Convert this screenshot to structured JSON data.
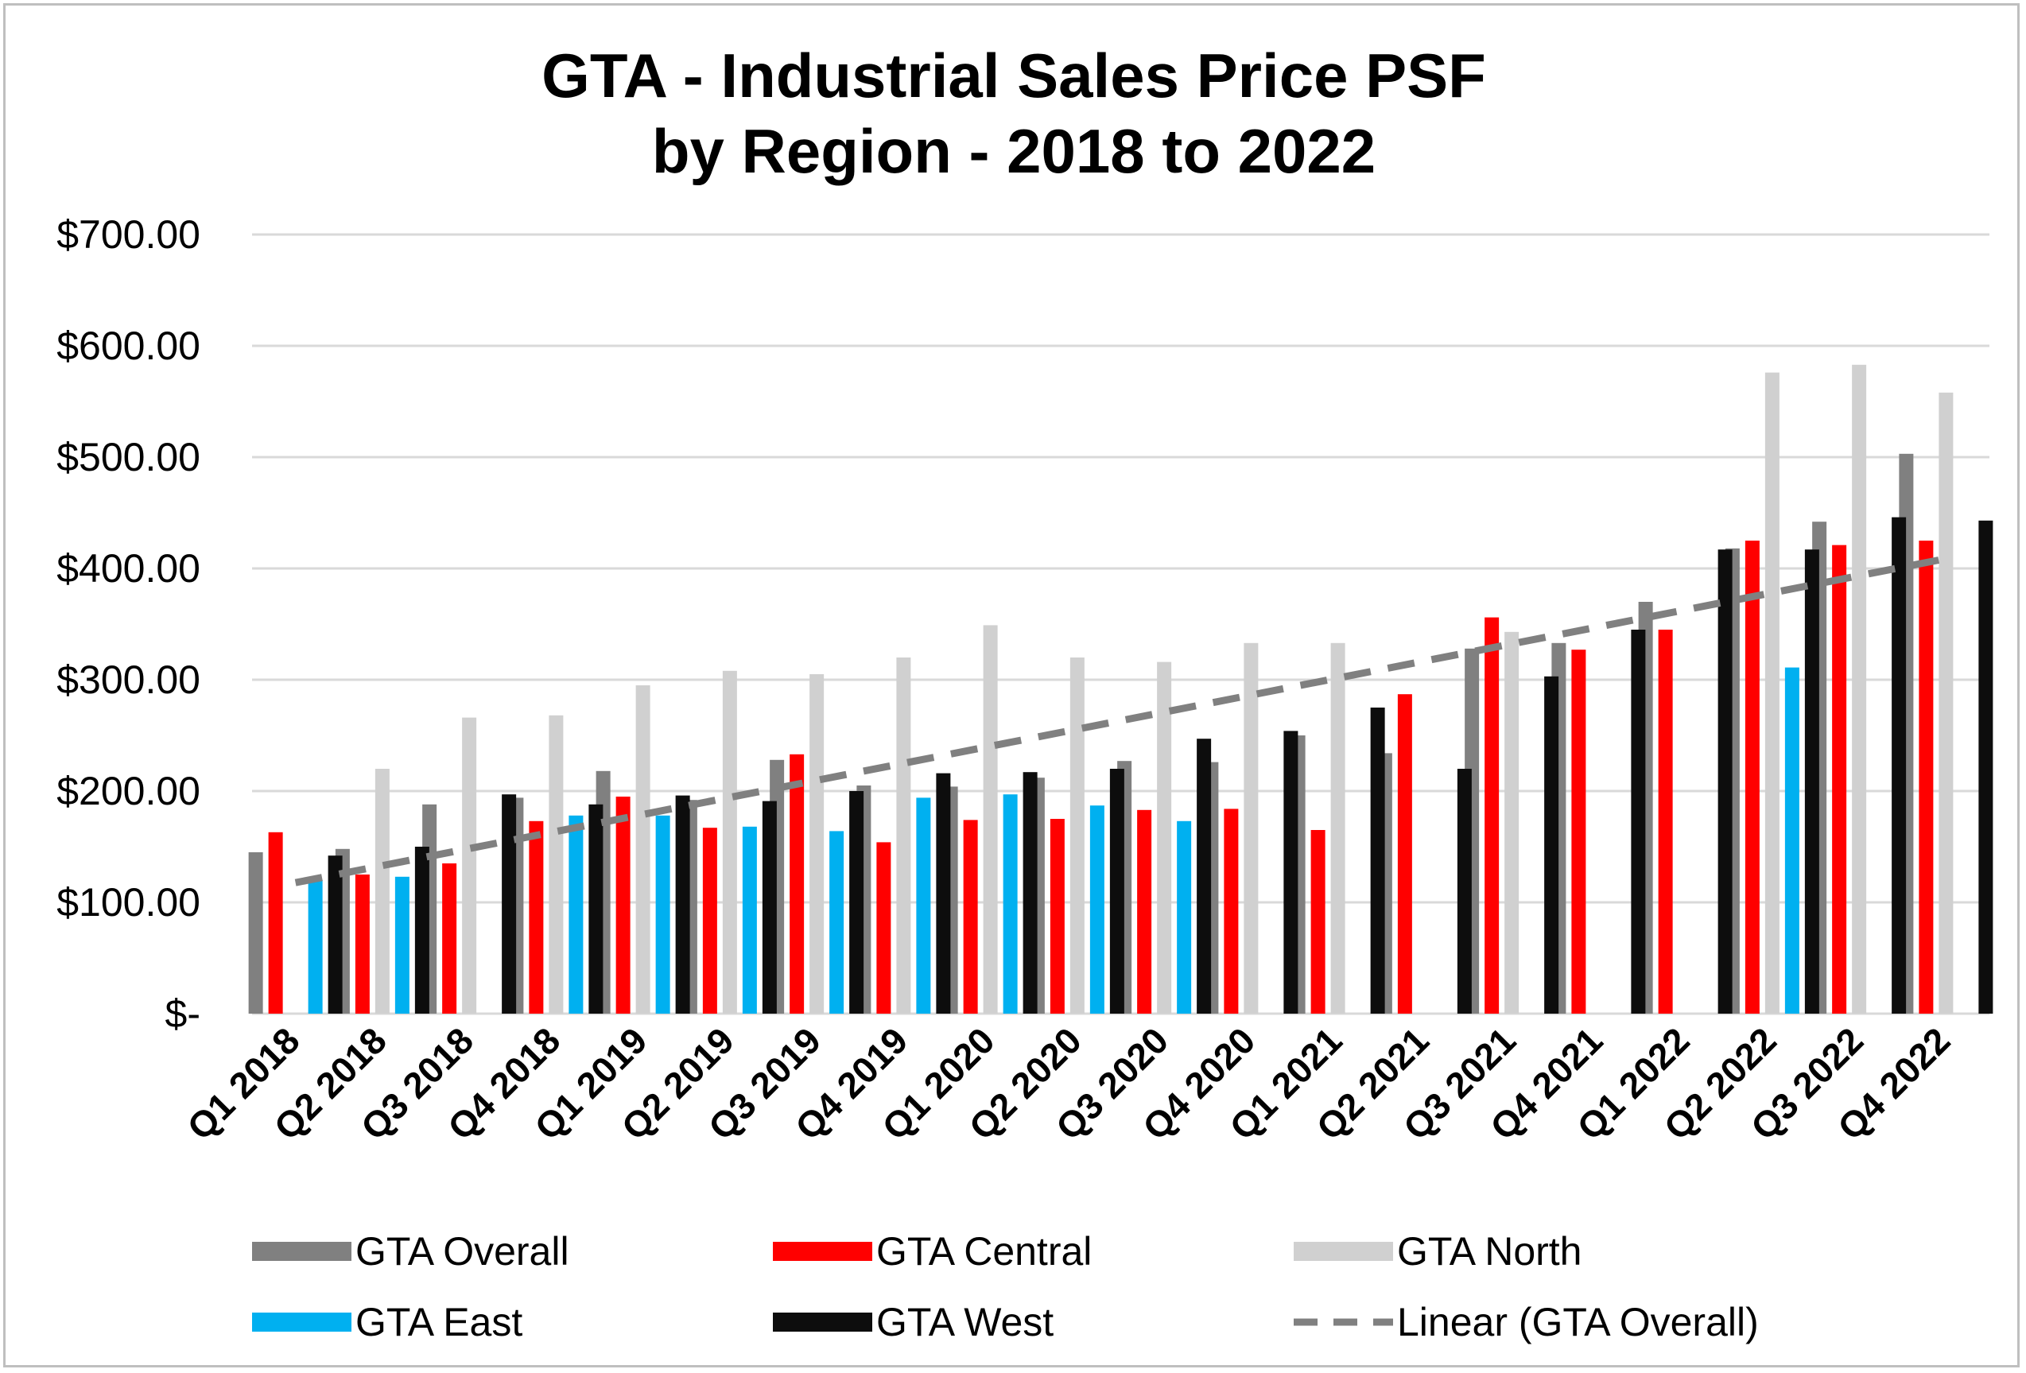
{
  "chart_data": {
    "type": "bar",
    "title": "GTA - Industrial Sales Price PSF",
    "subtitle": "by Region - 2018 to 2022",
    "xlabel": "",
    "ylabel": "",
    "ylim": [
      0,
      700
    ],
    "y_ticks": [
      {
        "value": 0,
        "label": "$-"
      },
      {
        "value": 100,
        "label": "$100.00"
      },
      {
        "value": 200,
        "label": "$200.00"
      },
      {
        "value": 300,
        "label": "$300.00"
      },
      {
        "value": 400,
        "label": "$400.00"
      },
      {
        "value": 500,
        "label": "$500.00"
      },
      {
        "value": 600,
        "label": "$600.00"
      },
      {
        "value": 700,
        "label": "$700.00"
      }
    ],
    "grid": true,
    "legend_position": "bottom",
    "categories": [
      "Q1 2018",
      "Q2 2018",
      "Q3 2018",
      "Q4 2018",
      "Q1 2019",
      "Q2 2019",
      "Q3 2019",
      "Q4 2019",
      "Q1 2020",
      "Q2 2020",
      "Q3 2020",
      "Q4 2020",
      "Q1 2021",
      "Q2 2021",
      "Q3 2021",
      "Q4 2021",
      "Q1 2022",
      "Q2 2022",
      "Q3 2022",
      "Q4 2022"
    ],
    "series": [
      {
        "name": "GTA Overall",
        "color": "#808080",
        "values": [
          145,
          148,
          188,
          194,
          218,
          192,
          228,
          205,
          204,
          212,
          227,
          226,
          250,
          234,
          328,
          333,
          370,
          418,
          442,
          503
        ]
      },
      {
        "name": "GTA Central",
        "color": "#ff0000",
        "values": [
          163,
          125,
          135,
          173,
          195,
          167,
          233,
          154,
          174,
          175,
          183,
          184,
          165,
          287,
          356,
          327,
          345,
          425,
          421,
          425
        ]
      },
      {
        "name": "GTA North",
        "color": "#d0d0d0",
        "values": [
          null,
          220,
          266,
          268,
          295,
          308,
          305,
          320,
          349,
          320,
          316,
          333,
          333,
          null,
          343,
          null,
          null,
          576,
          583,
          558
        ]
      },
      {
        "name": "GTA East",
        "color": "#00b0f0",
        "values": [
          120,
          123,
          null,
          178,
          178,
          168,
          164,
          194,
          197,
          187,
          173,
          null,
          null,
          null,
          null,
          null,
          null,
          311,
          null,
          null
        ]
      },
      {
        "name": "GTA West",
        "color": "#0d0d0d",
        "values": [
          142,
          150,
          197,
          188,
          196,
          191,
          200,
          216,
          217,
          220,
          247,
          254,
          275,
          220,
          303,
          345,
          417,
          417,
          446,
          443
        ]
      }
    ],
    "trendline": {
      "name": "Linear (GTA Overall)",
      "type": "linear",
      "of_series": "GTA Overall",
      "color": "#808080",
      "dashed": true
    }
  }
}
